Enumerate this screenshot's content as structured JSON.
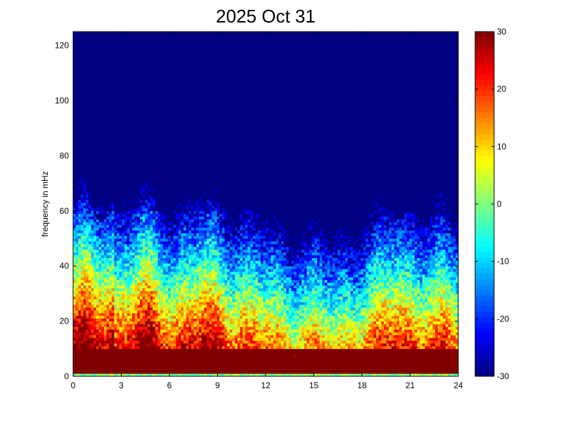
{
  "chart_data": {
    "type": "heatmap",
    "title": "2025 Oct 31",
    "xlabel": "",
    "ylabel": "frequency in mHz",
    "xlim": [
      0,
      24
    ],
    "ylim": [
      0,
      125
    ],
    "x_ticks": [
      "0",
      "3",
      "6",
      "9",
      "12",
      "15",
      "18",
      "21",
      "24"
    ],
    "y_ticks": [
      "0",
      "20",
      "40",
      "60",
      "80",
      "100",
      "120"
    ],
    "colorbar": {
      "colormap": "jet",
      "range": [
        -30,
        30
      ],
      "ticks": [
        "30",
        "20",
        "10",
        "0",
        "-10",
        "-20",
        "-30"
      ]
    },
    "grid": false,
    "cells_x": 150,
    "cells_y": 125
  }
}
